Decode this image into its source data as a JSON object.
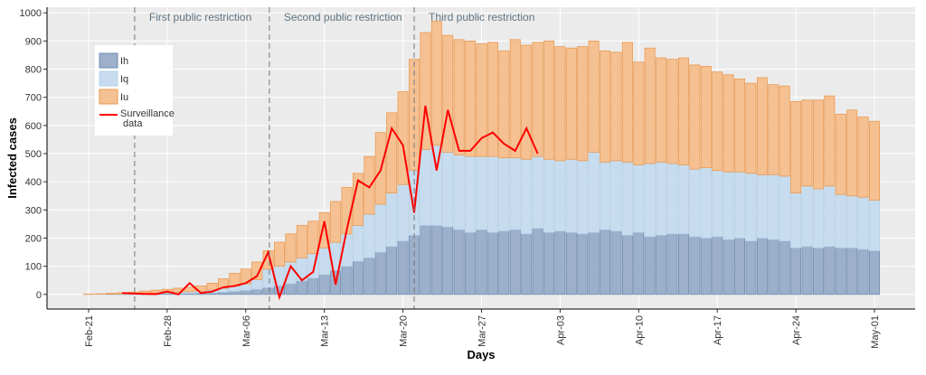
{
  "chart_data": {
    "type": "bar",
    "stacked": true,
    "x_label": "Days",
    "y_label": "Infected cases",
    "categories": [
      "Feb-21",
      null,
      null,
      null,
      null,
      null,
      null,
      "Feb-28",
      null,
      null,
      null,
      null,
      null,
      null,
      "Mar-06",
      null,
      null,
      null,
      null,
      null,
      null,
      "Mar-13",
      null,
      null,
      null,
      null,
      null,
      null,
      "Mar-20",
      null,
      null,
      null,
      null,
      null,
      null,
      "Mar-27",
      null,
      null,
      null,
      null,
      null,
      null,
      "Apr-03",
      null,
      null,
      null,
      null,
      null,
      null,
      "Apr-10",
      null,
      null,
      null,
      null,
      null,
      null,
      "Apr-17",
      null,
      null,
      null,
      null,
      null,
      null,
      "Apr-24",
      null,
      null,
      null,
      null,
      null,
      null,
      "May-01"
    ],
    "series": [
      {
        "name": "Ih",
        "color": "#9cb0cb",
        "stroke": "#6f8db3",
        "values": [
          0,
          0,
          1,
          1,
          1,
          2,
          2,
          3,
          3,
          4,
          5,
          6,
          8,
          11,
          14,
          18,
          24,
          30,
          38,
          48,
          58,
          70,
          85,
          100,
          118,
          130,
          150,
          170,
          190,
          210,
          245,
          245,
          240,
          230,
          220,
          230,
          220,
          225,
          230,
          215,
          235,
          220,
          225,
          220,
          215,
          220,
          230,
          225,
          210,
          220,
          205,
          210,
          215,
          215,
          205,
          200,
          205,
          195,
          200,
          190,
          200,
          195,
          190,
          165,
          170,
          165,
          170,
          165,
          165,
          160,
          155
        ]
      },
      {
        "name": "Iq",
        "color": "#c7ddef",
        "stroke": "#b3cfe6",
        "values": [
          0,
          1,
          0,
          1,
          2,
          2,
          3,
          3,
          5,
          6,
          7,
          10,
          14,
          19,
          24,
          34,
          66,
          70,
          77,
          82,
          87,
          95,
          100,
          115,
          127,
          155,
          170,
          190,
          200,
          230,
          270,
          285,
          265,
          265,
          270,
          260,
          270,
          260,
          255,
          265,
          255,
          260,
          250,
          260,
          260,
          285,
          240,
          250,
          260,
          240,
          260,
          260,
          250,
          245,
          240,
          250,
          235,
          240,
          235,
          240,
          225,
          230,
          230,
          195,
          215,
          210,
          215,
          190,
          185,
          185,
          180
        ]
      },
      {
        "name": "Iu",
        "color": "#f5c193",
        "stroke": "#eb9a52",
        "values": [
          1,
          1,
          3,
          4,
          5,
          8,
          10,
          12,
          14,
          15,
          18,
          24,
          33,
          45,
          52,
          63,
          65,
          85,
          100,
          115,
          115,
          125,
          145,
          165,
          185,
          205,
          255,
          285,
          330,
          395,
          415,
          440,
          415,
          410,
          410,
          400,
          405,
          380,
          420,
          405,
          405,
          420,
          405,
          395,
          405,
          395,
          395,
          385,
          425,
          365,
          410,
          370,
          370,
          380,
          370,
          360,
          350,
          345,
          330,
          320,
          345,
          320,
          320,
          325,
          305,
          315,
          320,
          285,
          305,
          285,
          280
        ]
      },
      {
        "name": "Surveillance\n data",
        "type": "line",
        "color": "#ff0000",
        "values": [
          null,
          null,
          null,
          5,
          3,
          2,
          1,
          10,
          0,
          40,
          5,
          10,
          25,
          30,
          40,
          65,
          150,
          -10,
          100,
          50,
          80,
          260,
          35,
          230,
          405,
          380,
          440,
          590,
          530,
          290,
          670,
          440,
          655,
          510,
          510,
          555,
          575,
          535,
          510,
          590,
          500,
          null,
          null,
          null,
          null,
          null,
          null,
          null,
          null,
          null,
          null,
          null,
          null,
          null,
          null,
          null,
          null,
          null,
          null,
          null,
          null,
          null,
          null,
          null,
          null,
          null,
          null,
          null,
          null,
          null,
          null
        ]
      }
    ],
    "annotations": [
      {
        "text": "First public restriction",
        "x": 4.1
      },
      {
        "text": "Second public restriction",
        "x": 16.1
      },
      {
        "text": "Third public restriction",
        "x": 29
      }
    ],
    "ylim": [
      -52,
      1020
    ],
    "yticks": [
      0,
      100,
      200,
      300,
      400,
      500,
      600,
      700,
      800,
      900,
      1000
    ],
    "grid": true,
    "legend": "upper left"
  }
}
